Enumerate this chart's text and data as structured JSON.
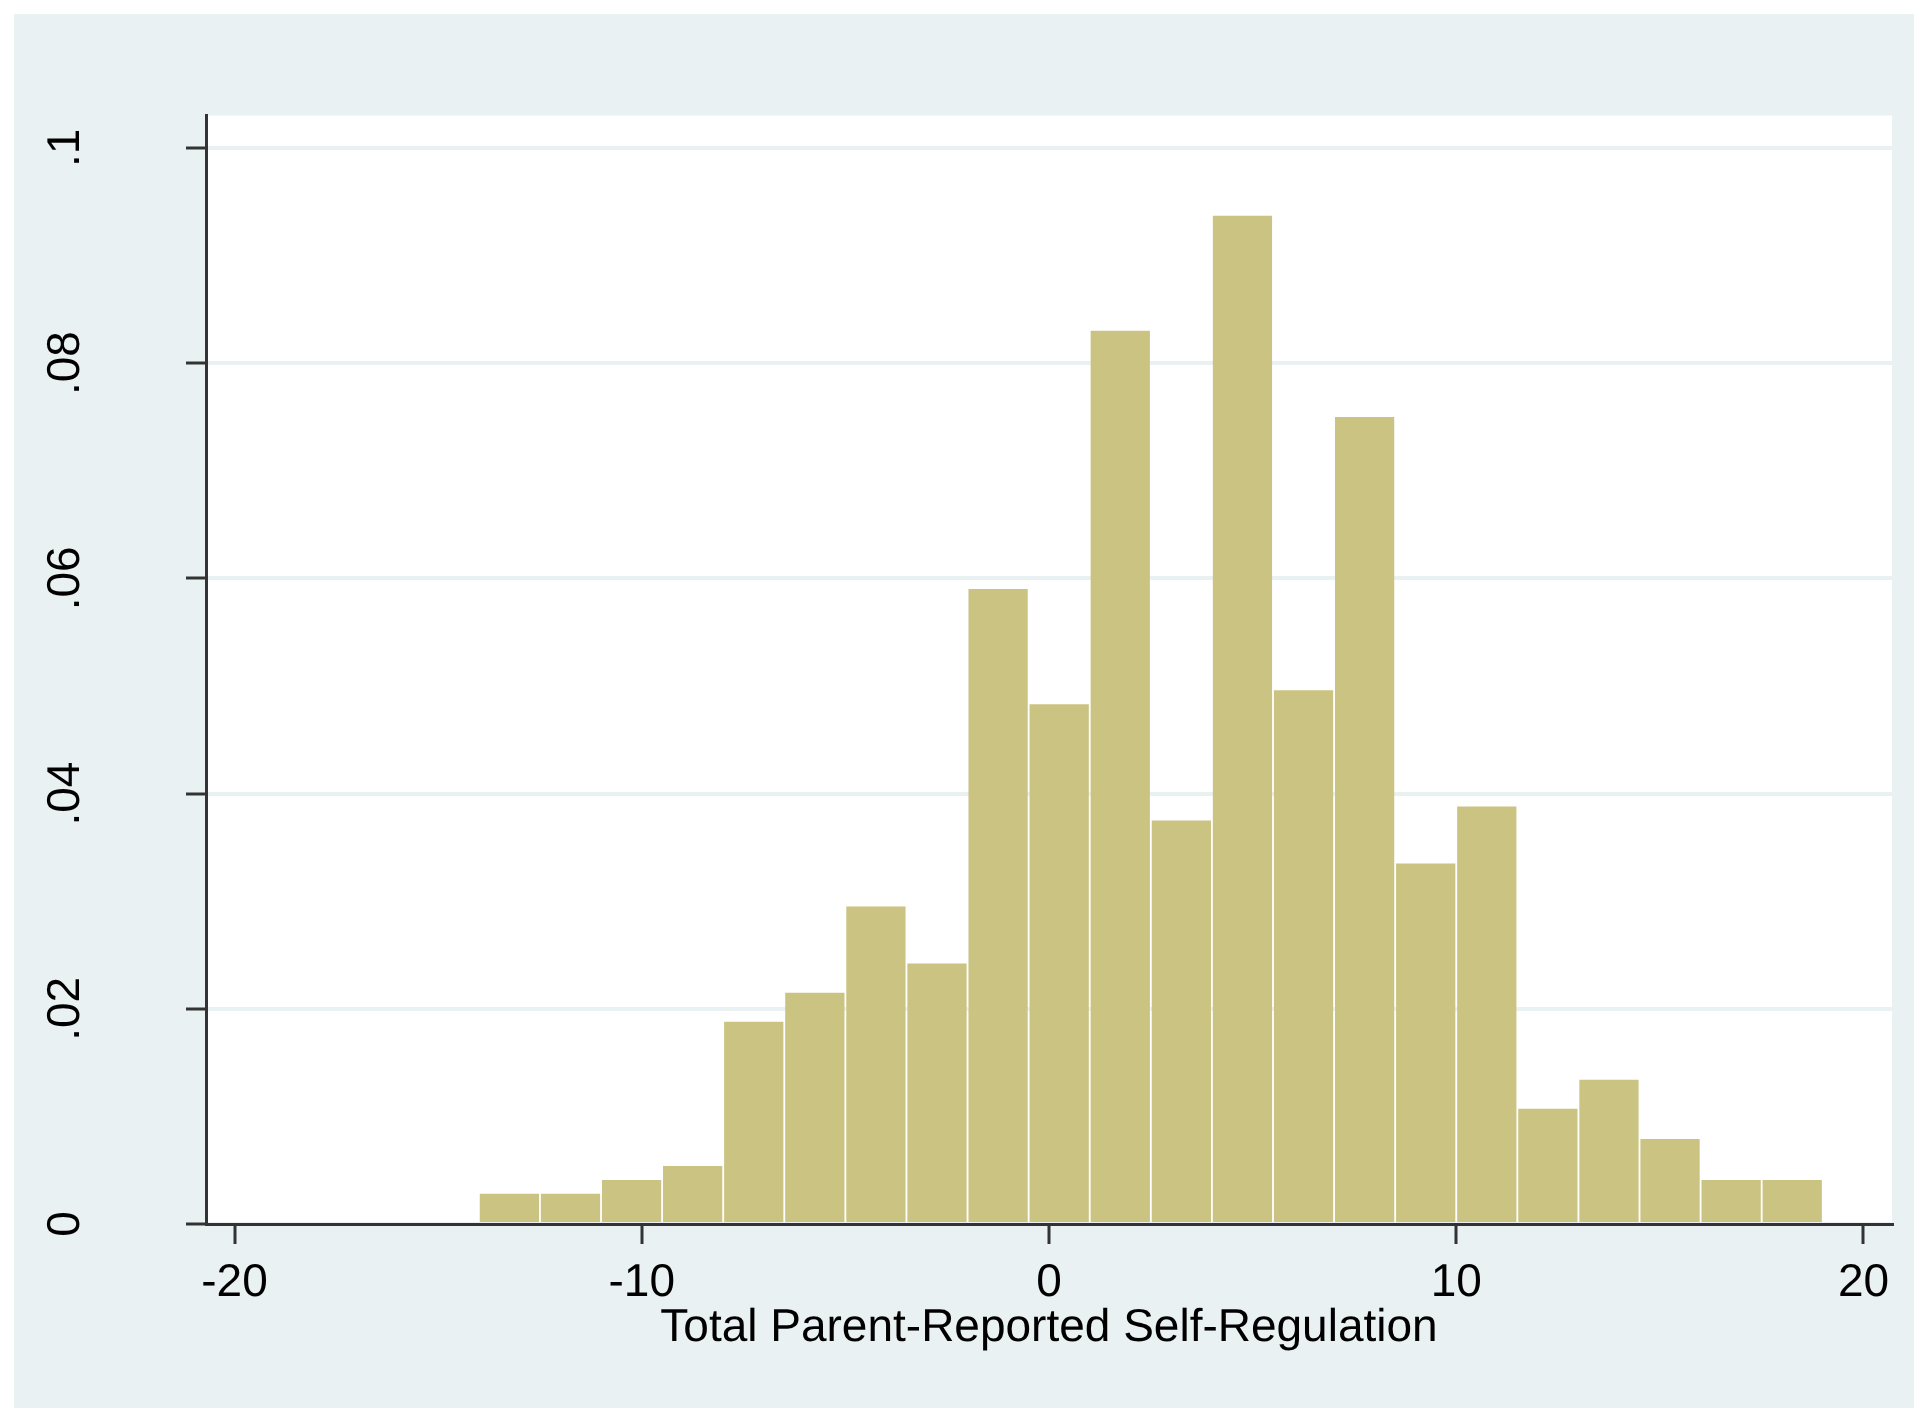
{
  "chart_data": {
    "type": "histogram",
    "xlabel": "Total Parent-Reported Self-Regulation",
    "bins": [
      -14,
      -12.5,
      -11,
      -9.5,
      -8,
      -6.5,
      -5,
      -3.5,
      -2,
      -0.5,
      1,
      2.5,
      4,
      5.5,
      7,
      8.5,
      10,
      11.5,
      13,
      14.5,
      16,
      17.5,
      19
    ],
    "values": [
      0.0028,
      0.0028,
      0.0041,
      0.0054,
      0.0188,
      0.0215,
      0.0295,
      0.0242,
      0.059,
      0.0483,
      0.083,
      0.0375,
      0.0937,
      0.0496,
      0.075,
      0.0335,
      0.0388,
      0.0107,
      0.0134,
      0.0079,
      0.0041,
      0.0041
    ],
    "color": "#cbc382",
    "xlim": [
      -20.7,
      20.7
    ],
    "xticks": [
      -20,
      -10,
      0,
      10,
      20
    ],
    "ylim": [
      0,
      0.103
    ],
    "yticks": [
      0,
      {
        "value": 0.02,
        "label": ".02"
      },
      {
        "value": 0.04,
        "label": ".04"
      },
      {
        "value": 0.06,
        "label": ".06"
      },
      {
        "value": 0.08,
        "label": ".08"
      },
      {
        "value": 0.1,
        "label": ".1"
      }
    ],
    "grid": "y"
  }
}
